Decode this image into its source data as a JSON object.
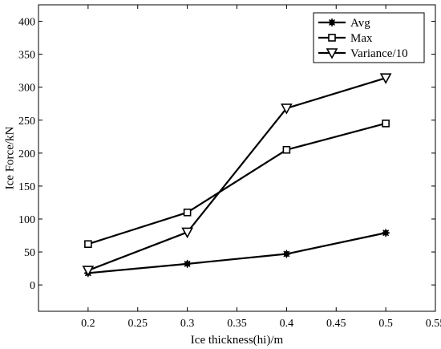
{
  "chart_data": {
    "type": "line",
    "xlabel": "Ice thickness(hi)/m",
    "ylabel": "Ice  Force/kN",
    "xlim": [
      0.15,
      0.55
    ],
    "ylim": [
      -40,
      425
    ],
    "x_ticks": [
      0.2,
      0.25,
      0.3,
      0.35,
      0.4,
      0.45,
      0.5,
      0.55
    ],
    "x_tick_labels": [
      "0.2",
      "0.25",
      "0.3",
      "0.35",
      "0.4",
      "0.45",
      "0.5",
      "0.55"
    ],
    "y_ticks": [
      0,
      50,
      100,
      150,
      200,
      250,
      300,
      350,
      400
    ],
    "y_tick_labels": [
      "0",
      "50",
      "100",
      "150",
      "200",
      "250",
      "300",
      "350",
      "400"
    ],
    "grid": false,
    "legend_position": "top-right",
    "x": [
      0.2,
      0.3,
      0.4,
      0.5
    ],
    "series": [
      {
        "name": "Avg",
        "marker": "asterisk",
        "values": [
          18,
          32,
          47,
          79
        ]
      },
      {
        "name": "Max",
        "marker": "square",
        "values": [
          62,
          110,
          205,
          245
        ]
      },
      {
        "name": "Variance/10",
        "marker": "triangle-down",
        "values": [
          22,
          80,
          268,
          314
        ]
      }
    ],
    "line_color": "#000000"
  }
}
